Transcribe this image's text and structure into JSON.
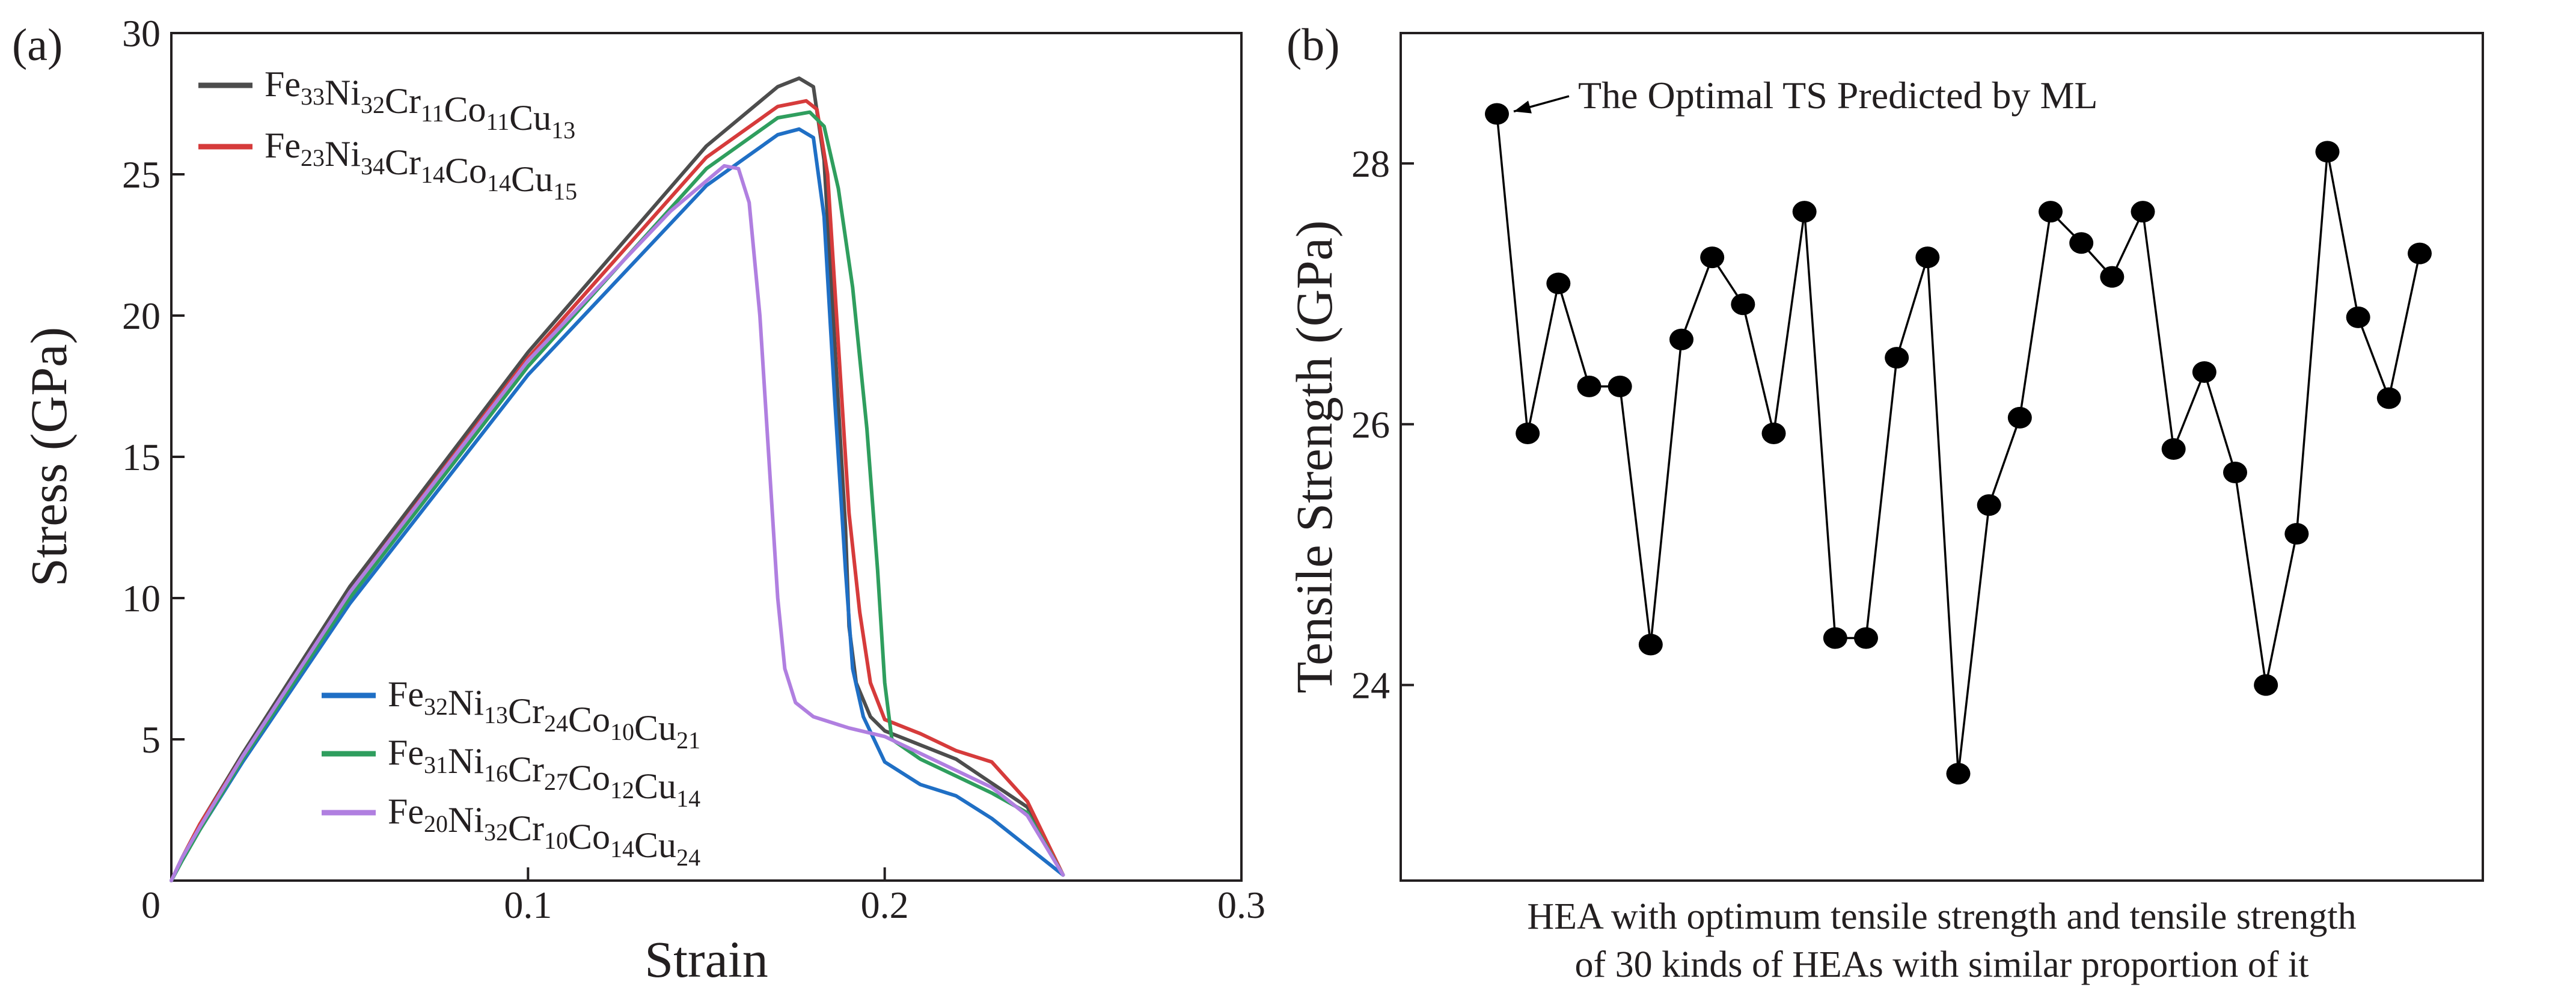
{
  "figure": {
    "panel_a_label": "(a)",
    "panel_b_label": "(b)"
  },
  "chart_data": [
    {
      "type": "line",
      "panel": "a",
      "xlabel": "Strain",
      "ylabel": "Stress (GPa)",
      "xlim": [
        0,
        0.3
      ],
      "ylim": [
        0,
        30
      ],
      "xticks": [
        "0",
        "0.1",
        "0.2",
        "0.3"
      ],
      "yticks": [
        "5",
        "10",
        "15",
        "20",
        "25",
        "30"
      ],
      "legend_top": [
        0,
        1
      ],
      "legend_bottom": [
        2,
        3,
        4
      ],
      "series": [
        {
          "name": "Fe33Ni32Cr11Co11Cu13",
          "label_parts": [
            [
              "Fe",
              "33"
            ],
            [
              "Ni",
              "32"
            ],
            [
              "Cr",
              "11"
            ],
            [
              "Co",
              "11"
            ],
            [
              "Cu",
              "13"
            ]
          ],
          "color": "#4d4d4d",
          "x": [
            0,
            0.003,
            0.008,
            0.02,
            0.05,
            0.1,
            0.15,
            0.17,
            0.176,
            0.18,
            0.183,
            0.186,
            0.189,
            0.19,
            0.192,
            0.196,
            0.2,
            0.21,
            0.22,
            0.24,
            0.25
          ],
          "y": [
            0,
            0.8,
            2.0,
            4.5,
            10.4,
            18.7,
            26.0,
            28.1,
            28.4,
            28.1,
            25.5,
            19.0,
            12.5,
            9.0,
            7.0,
            5.8,
            5.3,
            4.8,
            4.3,
            2.6,
            0.2
          ]
        },
        {
          "name": "Fe23Ni34Cr14Co14Cu15",
          "label_parts": [
            [
              "Fe",
              "23"
            ],
            [
              "Ni",
              "34"
            ],
            [
              "Cr",
              "14"
            ],
            [
              "Co",
              "14"
            ],
            [
              "Cu",
              "15"
            ]
          ],
          "color": "#d63b3b",
          "x": [
            0,
            0.003,
            0.008,
            0.02,
            0.05,
            0.1,
            0.15,
            0.17,
            0.178,
            0.181,
            0.184,
            0.187,
            0.19,
            0.193,
            0.196,
            0.2,
            0.21,
            0.22,
            0.23,
            0.24,
            0.25
          ],
          "y": [
            0,
            0.8,
            2.0,
            4.4,
            10.2,
            18.5,
            25.6,
            27.4,
            27.6,
            27.3,
            25.0,
            19.0,
            13.0,
            9.5,
            7.0,
            5.7,
            5.2,
            4.6,
            4.2,
            2.8,
            0.2
          ]
        },
        {
          "name": "Fe32Ni13Cr24Co10Cu21",
          "label_parts": [
            [
              "Fe",
              "32"
            ],
            [
              "Ni",
              "13"
            ],
            [
              "Cr",
              "24"
            ],
            [
              "Co",
              "10"
            ],
            [
              "Cu",
              "21"
            ]
          ],
          "color": "#1f6fc5",
          "x": [
            0,
            0.003,
            0.008,
            0.02,
            0.05,
            0.1,
            0.15,
            0.17,
            0.176,
            0.18,
            0.183,
            0.186,
            0.189,
            0.191,
            0.194,
            0.197,
            0.2,
            0.21,
            0.22,
            0.23,
            0.25
          ],
          "y": [
            0,
            0.7,
            1.8,
            4.2,
            9.8,
            17.9,
            24.6,
            26.4,
            26.6,
            26.3,
            23.5,
            17.0,
            11.0,
            7.5,
            5.8,
            5.0,
            4.2,
            3.4,
            3.0,
            2.2,
            0.2
          ]
        },
        {
          "name": "Fe31Ni16Cr27Co12Cu14",
          "label_parts": [
            [
              "Fe",
              "31"
            ],
            [
              "Ni",
              "16"
            ],
            [
              "Cr",
              "27"
            ],
            [
              "Co",
              "12"
            ],
            [
              "Cu",
              "14"
            ]
          ],
          "color": "#2f9e5e",
          "x": [
            0,
            0.003,
            0.008,
            0.02,
            0.05,
            0.1,
            0.15,
            0.17,
            0.179,
            0.183,
            0.187,
            0.191,
            0.195,
            0.198,
            0.2,
            0.202,
            0.21,
            0.22,
            0.23,
            0.24,
            0.25
          ],
          "y": [
            0,
            0.7,
            1.8,
            4.3,
            10.0,
            18.2,
            25.2,
            27.0,
            27.2,
            26.7,
            24.5,
            21.0,
            16.0,
            11.0,
            7.0,
            5.0,
            4.3,
            3.7,
            3.1,
            2.4,
            0.2
          ]
        },
        {
          "name": "Fe20Ni32Cr10Co14Cu24",
          "label_parts": [
            [
              "Fe",
              "20"
            ],
            [
              "Ni",
              "32"
            ],
            [
              "Cr",
              "10"
            ],
            [
              "Co",
              "14"
            ],
            [
              "Cu",
              "24"
            ]
          ],
          "color": "#b07fe0",
          "x": [
            0,
            0.003,
            0.008,
            0.02,
            0.05,
            0.1,
            0.14,
            0.155,
            0.159,
            0.162,
            0.165,
            0.168,
            0.17,
            0.172,
            0.175,
            0.18,
            0.19,
            0.2,
            0.21,
            0.22,
            0.23,
            0.24,
            0.25
          ],
          "y": [
            0,
            0.8,
            1.9,
            4.4,
            10.2,
            18.4,
            23.7,
            25.3,
            25.2,
            24.0,
            20.0,
            14.0,
            10.0,
            7.5,
            6.3,
            5.8,
            5.4,
            5.1,
            4.5,
            3.9,
            3.3,
            2.3,
            0.2
          ]
        }
      ]
    },
    {
      "type": "line",
      "panel": "b",
      "xlabel_lines": [
        "HEA with optimum tensile strength and tensile strength",
        "of 30 kinds of HEAs with similar proportion of it"
      ],
      "ylabel": "Tensile Strength (GPa)",
      "ylim": [
        22.5,
        29.0
      ],
      "yticks": [
        "24",
        "26",
        "28"
      ],
      "ytick_values": [
        24,
        26,
        28
      ],
      "annotation": "The Optimal TS Predicted by ML",
      "marker_color": "#000000",
      "line_color": "#000000",
      "values": [
        28.38,
        25.93,
        27.08,
        26.29,
        26.29,
        24.31,
        26.65,
        27.28,
        26.92,
        25.93,
        27.63,
        24.36,
        24.36,
        26.51,
        27.28,
        23.32,
        25.38,
        26.05,
        27.63,
        27.39,
        27.13,
        27.63,
        25.81,
        26.4,
        25.63,
        24.0,
        25.16,
        28.09,
        26.82,
        26.2,
        27.31
      ]
    }
  ]
}
